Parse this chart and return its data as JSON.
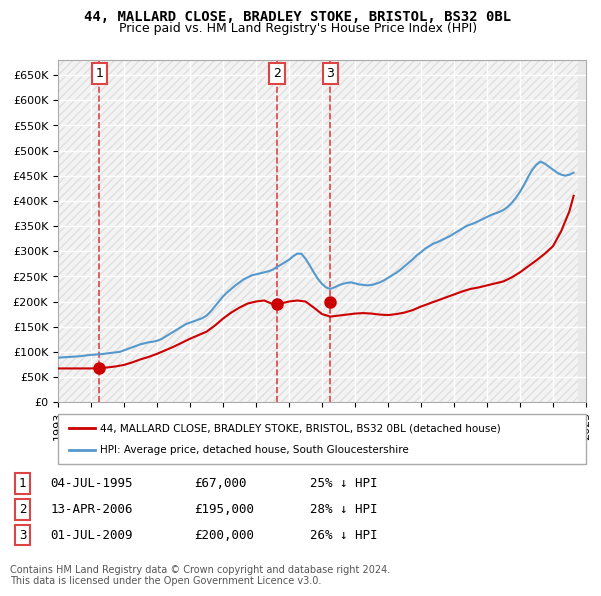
{
  "title": "44, MALLARD CLOSE, BRADLEY STOKE, BRISTOL, BS32 0BL",
  "subtitle": "Price paid vs. HM Land Registry's House Price Index (HPI)",
  "xlabel": "",
  "ylabel": "",
  "background_color": "#ffffff",
  "plot_bg_color": "#f0f0f0",
  "hatch_color": "#d8d8d8",
  "grid_color": "#ffffff",
  "sale_dates": [
    "1995-07-04",
    "2006-04-13",
    "2009-07-01"
  ],
  "sale_prices": [
    67000,
    195000,
    200000
  ],
  "sale_labels": [
    "1",
    "2",
    "3"
  ],
  "legend_label_red": "44, MALLARD CLOSE, BRADLEY STOKE, BRISTOL, BS32 0BL (detached house)",
  "legend_label_blue": "HPI: Average price, detached house, South Gloucestershire",
  "table_rows": [
    [
      "1",
      "04-JUL-1995",
      "£67,000",
      "25% ↓ HPI"
    ],
    [
      "2",
      "13-APR-2006",
      "£195,000",
      "28% ↓ HPI"
    ],
    [
      "3",
      "01-JUL-2009",
      "£200,000",
      "26% ↓ HPI"
    ]
  ],
  "footnote": "Contains HM Land Registry data © Crown copyright and database right 2024.\nThis data is licensed under the Open Government Licence v3.0.",
  "red_color": "#cc0000",
  "blue_color": "#5599cc",
  "dashed_red": "#dd4444",
  "ylim": [
    0,
    680000
  ],
  "yticks": [
    0,
    50000,
    100000,
    150000,
    200000,
    250000,
    300000,
    350000,
    400000,
    450000,
    500000,
    550000,
    600000,
    650000
  ],
  "ytick_labels": [
    "£0",
    "£50K",
    "£100K",
    "£150K",
    "£200K",
    "£250K",
    "£300K",
    "£350K",
    "£400K",
    "£450K",
    "£500K",
    "£550K",
    "£600K",
    "£650K"
  ],
  "hpi_years": [
    1993,
    1993.25,
    1993.5,
    1993.75,
    1994,
    1994.25,
    1994.5,
    1994.75,
    1995,
    1995.25,
    1995.5,
    1995.75,
    1996,
    1996.25,
    1996.5,
    1996.75,
    1997,
    1997.25,
    1997.5,
    1997.75,
    1998,
    1998.25,
    1998.5,
    1998.75,
    1999,
    1999.25,
    1999.5,
    1999.75,
    2000,
    2000.25,
    2000.5,
    2000.75,
    2001,
    2001.25,
    2001.5,
    2001.75,
    2002,
    2002.25,
    2002.5,
    2002.75,
    2003,
    2003.25,
    2003.5,
    2003.75,
    2004,
    2004.25,
    2004.5,
    2004.75,
    2005,
    2005.25,
    2005.5,
    2005.75,
    2006,
    2006.25,
    2006.5,
    2006.75,
    2007,
    2007.25,
    2007.5,
    2007.75,
    2008,
    2008.25,
    2008.5,
    2008.75,
    2009,
    2009.25,
    2009.5,
    2009.75,
    2010,
    2010.25,
    2010.5,
    2010.75,
    2011,
    2011.25,
    2011.5,
    2011.75,
    2012,
    2012.25,
    2012.5,
    2012.75,
    2013,
    2013.25,
    2013.5,
    2013.75,
    2014,
    2014.25,
    2014.5,
    2014.75,
    2015,
    2015.25,
    2015.5,
    2015.75,
    2016,
    2016.25,
    2016.5,
    2016.75,
    2017,
    2017.25,
    2017.5,
    2017.75,
    2018,
    2018.25,
    2018.5,
    2018.75,
    2019,
    2019.25,
    2019.5,
    2019.75,
    2020,
    2020.25,
    2020.5,
    2020.75,
    2021,
    2021.25,
    2021.5,
    2021.75,
    2022,
    2022.25,
    2022.5,
    2022.75,
    2023,
    2023.25,
    2023.5,
    2023.75,
    2024,
    2024.25
  ],
  "hpi_values": [
    88000,
    89000,
    89500,
    90000,
    90500,
    91000,
    92000,
    93000,
    94000,
    94500,
    95000,
    96000,
    97000,
    98000,
    99000,
    100000,
    103000,
    106000,
    109000,
    112000,
    115000,
    117000,
    119000,
    120000,
    122000,
    125000,
    130000,
    135000,
    140000,
    145000,
    150000,
    155000,
    158000,
    161000,
    164000,
    167000,
    172000,
    180000,
    190000,
    200000,
    210000,
    218000,
    225000,
    232000,
    238000,
    244000,
    248000,
    252000,
    254000,
    256000,
    258000,
    260000,
    263000,
    268000,
    273000,
    278000,
    283000,
    290000,
    295000,
    295000,
    285000,
    272000,
    258000,
    245000,
    235000,
    228000,
    225000,
    228000,
    232000,
    235000,
    237000,
    238000,
    236000,
    234000,
    233000,
    232000,
    233000,
    235000,
    238000,
    242000,
    247000,
    252000,
    257000,
    263000,
    270000,
    277000,
    284000,
    292000,
    298000,
    305000,
    310000,
    315000,
    318000,
    322000,
    326000,
    330000,
    335000,
    340000,
    345000,
    350000,
    353000,
    356000,
    360000,
    364000,
    368000,
    372000,
    375000,
    378000,
    382000,
    388000,
    396000,
    406000,
    418000,
    432000,
    448000,
    462000,
    472000,
    478000,
    474000,
    468000,
    462000,
    456000,
    452000,
    450000,
    452000,
    456000
  ],
  "red_line_years": [
    1993,
    1993.5,
    1994,
    1994.5,
    1995,
    1995.5,
    1996,
    1996.5,
    1997,
    1997.5,
    1998,
    1998.5,
    1999,
    1999.5,
    2000,
    2000.5,
    2001,
    2001.5,
    2002,
    2002.5,
    2003,
    2003.5,
    2004,
    2004.5,
    2005,
    2005.5,
    2006,
    2006.5,
    2007,
    2007.5,
    2008,
    2008.5,
    2009,
    2009.5,
    2010,
    2010.5,
    2011,
    2011.5,
    2012,
    2012.5,
    2013,
    2013.5,
    2014,
    2014.5,
    2015,
    2015.5,
    2016,
    2016.5,
    2017,
    2017.5,
    2018,
    2018.5,
    2019,
    2019.5,
    2020,
    2020.5,
    2021,
    2021.5,
    2022,
    2022.5,
    2023,
    2023.5,
    2024,
    2024.25
  ],
  "red_line_values": [
    67000,
    67000,
    67000,
    67000,
    67000,
    67800,
    69000,
    71000,
    74000,
    79000,
    85000,
    90000,
    96000,
    103000,
    110000,
    118000,
    126000,
    133000,
    140000,
    152000,
    166000,
    178000,
    188000,
    196000,
    200000,
    202000,
    195000,
    196000,
    200000,
    202000,
    200000,
    188000,
    175000,
    170000,
    172000,
    174000,
    176000,
    177000,
    176000,
    174000,
    173000,
    175000,
    178000,
    183000,
    190000,
    196000,
    202000,
    208000,
    214000,
    220000,
    225000,
    228000,
    232000,
    236000,
    240000,
    248000,
    258000,
    270000,
    282000,
    295000,
    310000,
    340000,
    380000,
    410000
  ]
}
